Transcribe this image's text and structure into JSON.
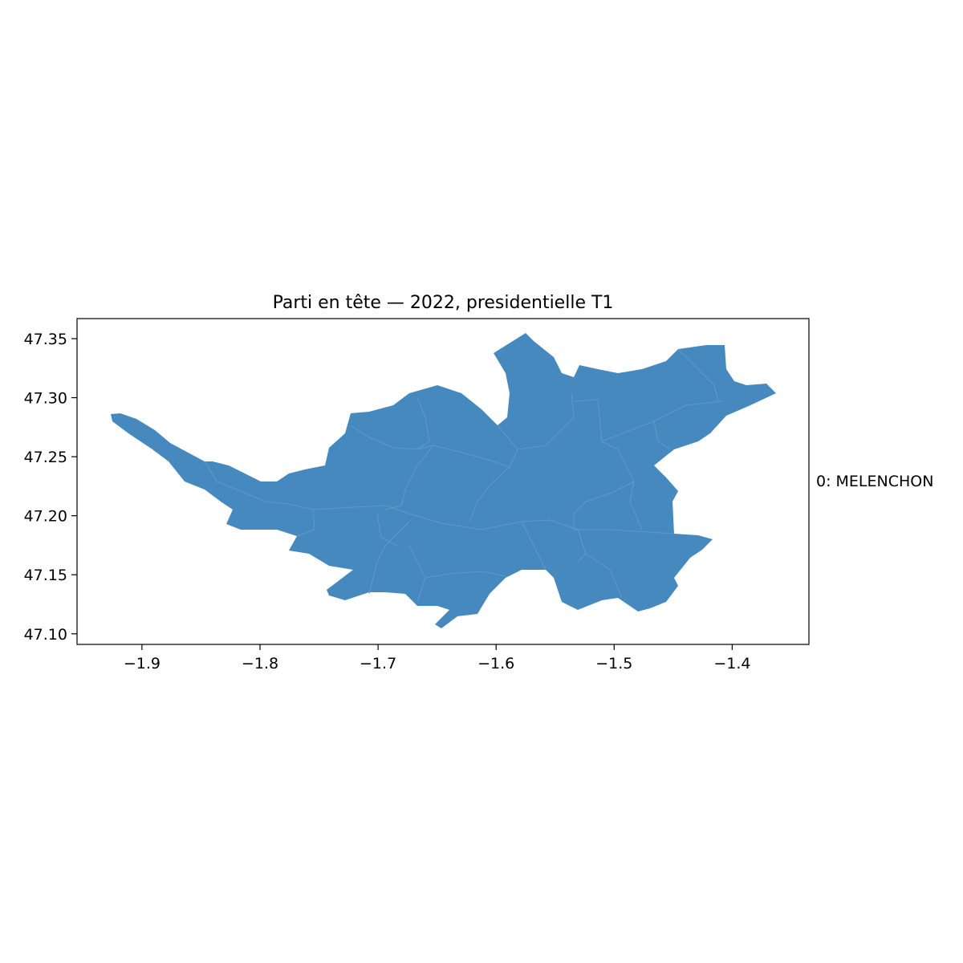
{
  "chart_data": {
    "type": "choropleth",
    "title": "Parti en tête — 2022, presidentielle T1",
    "xlim": [
      -1.955,
      -1.335
    ],
    "ylim": [
      47.091,
      47.367
    ],
    "x_ticks": [
      -1.9,
      -1.8,
      -1.7,
      -1.6,
      -1.5,
      -1.4
    ],
    "x_tick_labels": [
      "−1.9",
      "−1.8",
      "−1.7",
      "−1.6",
      "−1.5",
      "−1.4"
    ],
    "y_ticks": [
      47.1,
      47.15,
      47.2,
      47.25,
      47.3,
      47.35
    ],
    "y_tick_labels": [
      "47.10",
      "47.15",
      "47.20",
      "47.25",
      "47.30",
      "47.35"
    ],
    "legend": {
      "placement": "right",
      "entries": [
        {
          "label": "0: MELENCHON",
          "color": "#4589be"
        }
      ]
    },
    "fill_color": "#4589be",
    "boundary_color": "#5d9bcb"
  }
}
